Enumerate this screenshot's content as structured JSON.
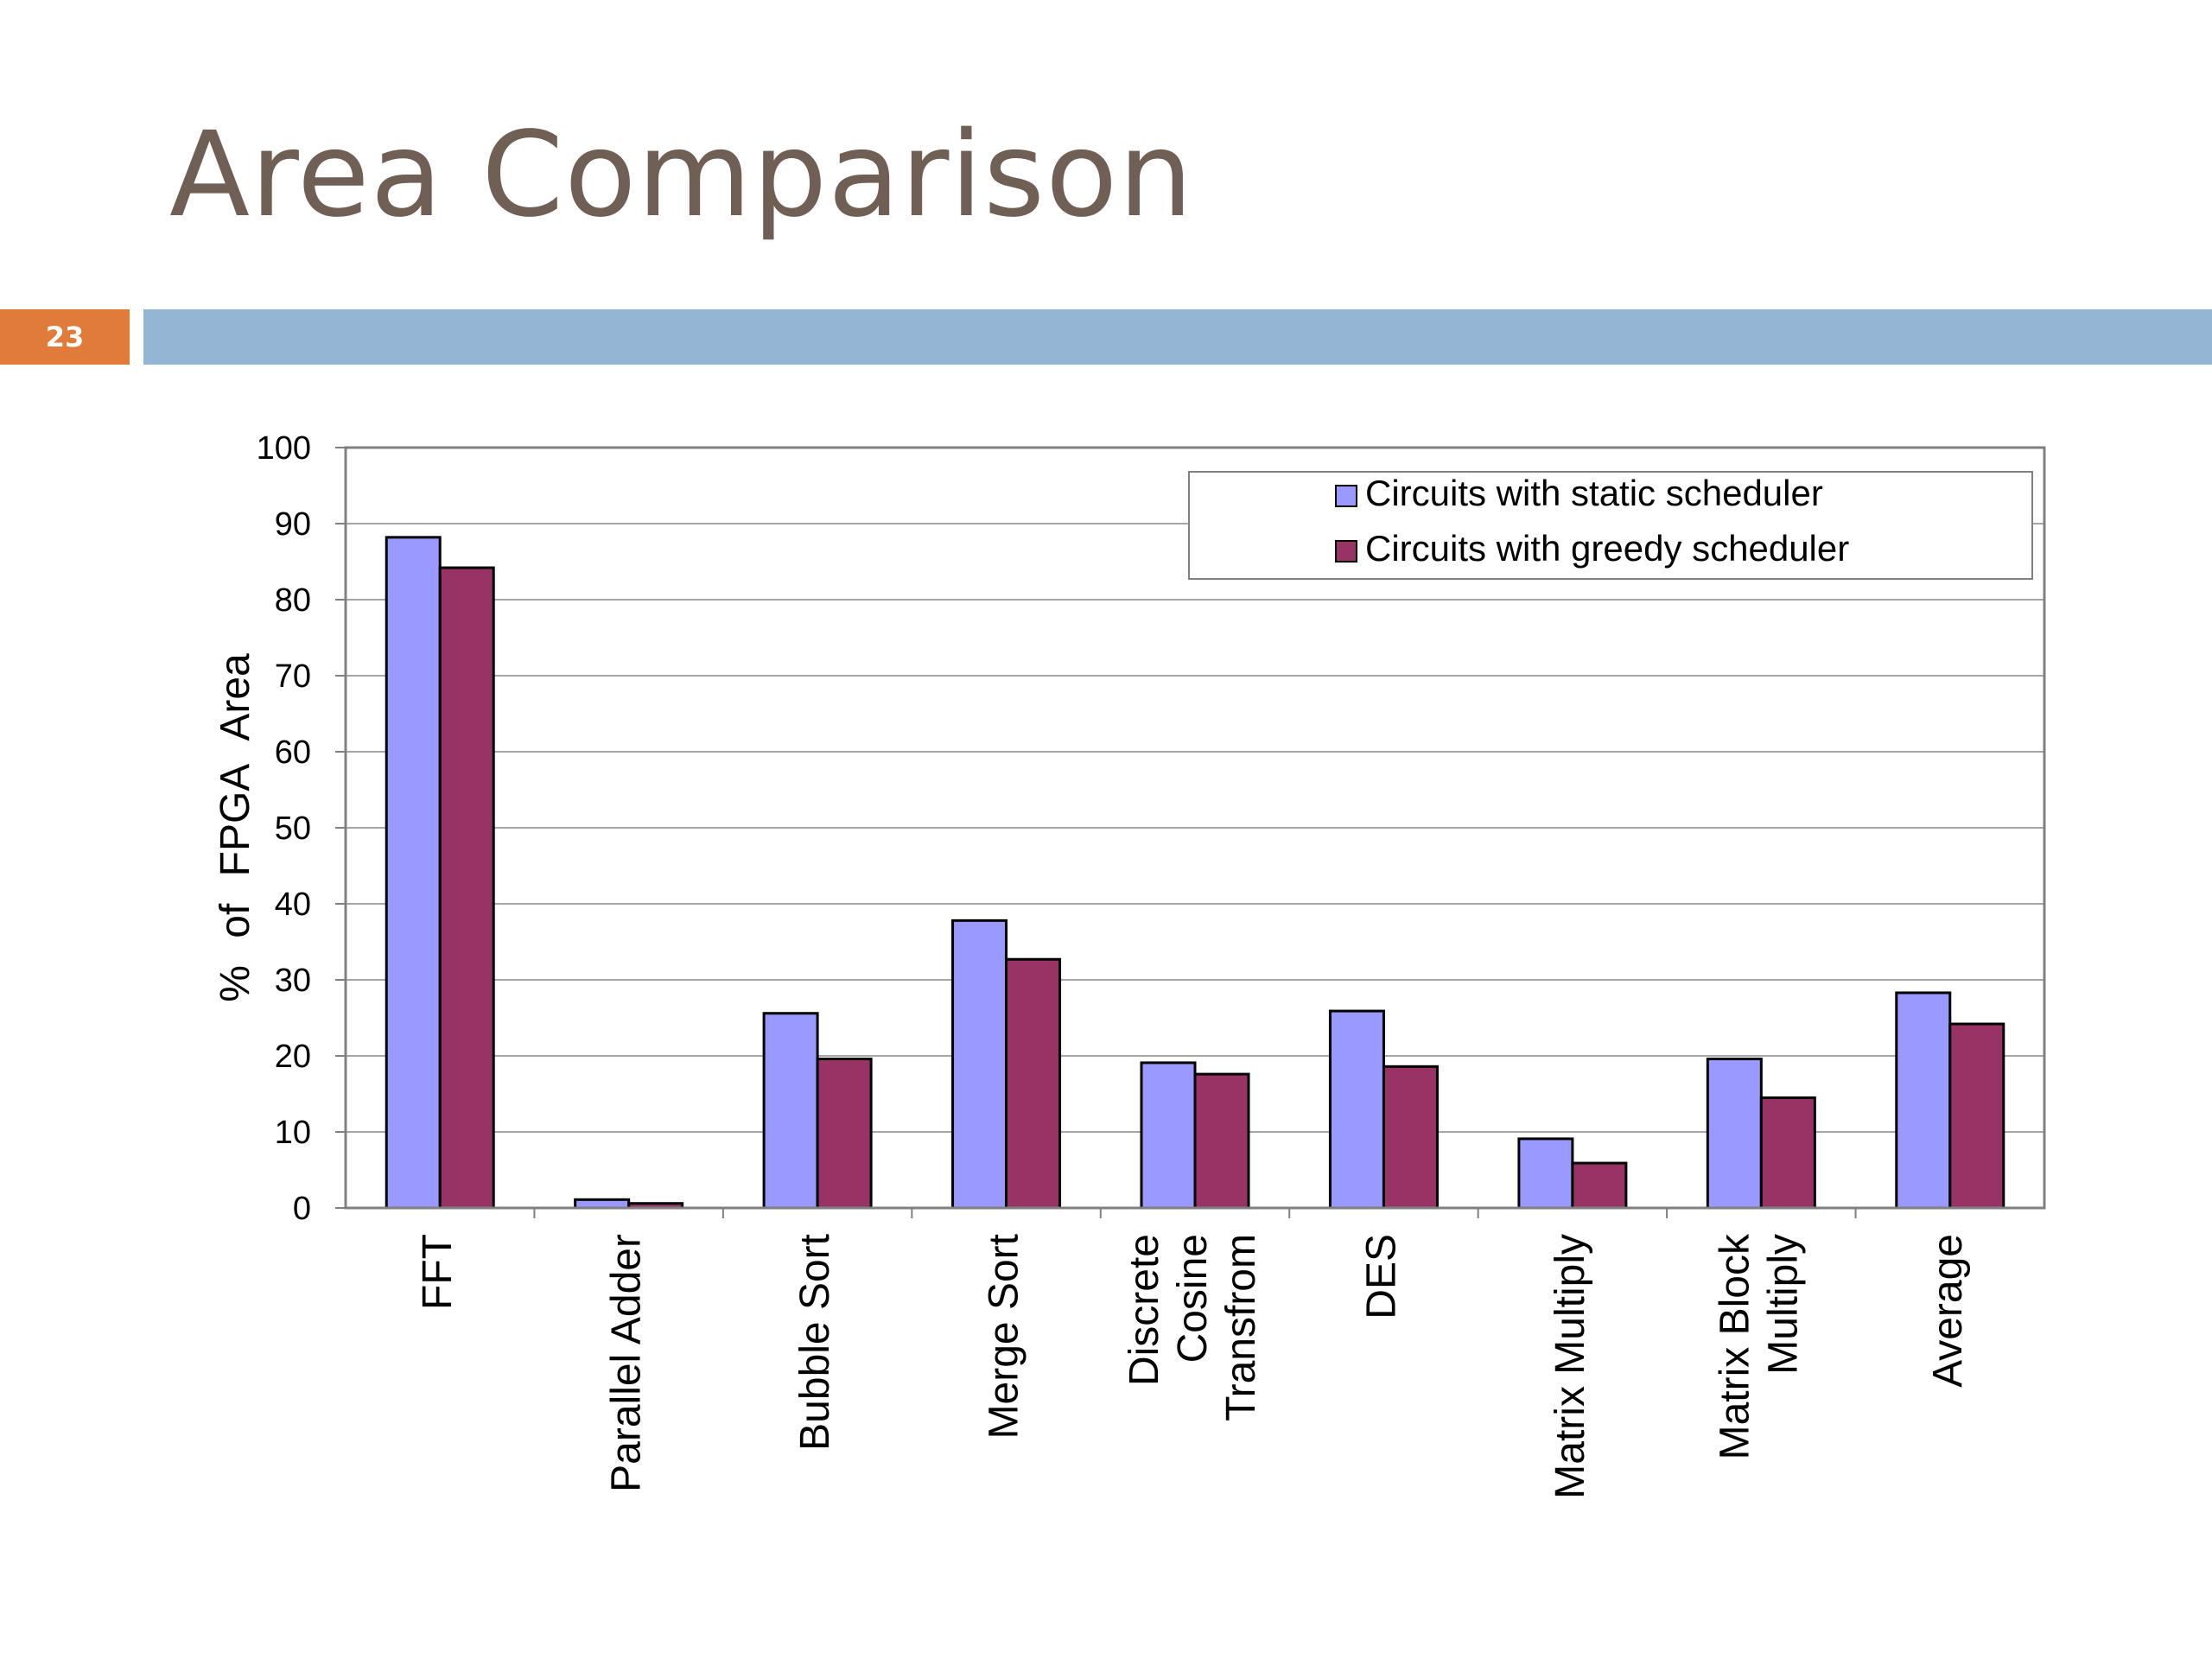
{
  "slide": {
    "title": "Area Comparison",
    "page_number": "23",
    "colors": {
      "title": "#6f5f55",
      "badge": "#e07b39",
      "bar": "#94b6d4"
    }
  },
  "chart_data": {
    "type": "bar",
    "title": "",
    "xlabel": "",
    "ylabel": "% of FPGA Area",
    "ylim": [
      0,
      100
    ],
    "yticks": [
      0,
      10,
      20,
      30,
      40,
      50,
      60,
      70,
      80,
      90,
      100
    ],
    "grid": true,
    "legend_position": "top-right",
    "categories": [
      [
        "FFT"
      ],
      [
        "Parallel Adder"
      ],
      [
        "Bubble Sort"
      ],
      [
        "Merge Sort"
      ],
      [
        "Discrete",
        "Cosine",
        "Transfrom"
      ],
      [
        "DES"
      ],
      [
        "Matrix Multiply"
      ],
      [
        "Matrix Block",
        "Multiply"
      ],
      [
        "Average"
      ]
    ],
    "series": [
      {
        "name": "Circuits with static scheduler",
        "color": "#9999ff",
        "values": [
          88.2,
          1.1,
          25.6,
          37.8,
          19.1,
          25.9,
          9.1,
          19.6,
          28.3
        ]
      },
      {
        "name": "Circuits with greedy scheduler",
        "color": "#993366",
        "values": [
          84.2,
          0.6,
          19.6,
          32.7,
          17.6,
          18.6,
          5.9,
          14.5,
          24.2
        ]
      }
    ]
  }
}
